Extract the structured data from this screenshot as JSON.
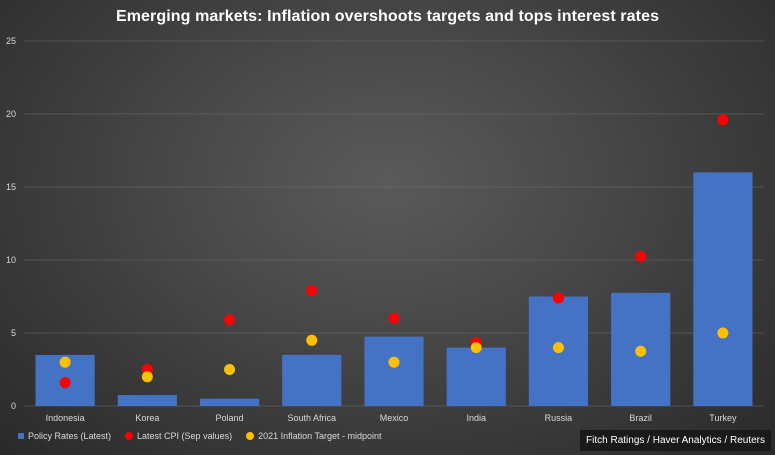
{
  "chart_data": {
    "type": "bar",
    "title": "Emerging markets: Inflation overshoots targets and tops interest rates",
    "categories": [
      "Indonesia",
      "Korea",
      "Poland",
      "South Africa",
      "Mexico",
      "India",
      "Russia",
      "Brazil",
      "Turkey"
    ],
    "series": [
      {
        "name": "Policy Rates (Latest)",
        "kind": "bar",
        "color": "#4472c4",
        "values": [
          3.5,
          0.75,
          0.5,
          3.5,
          4.75,
          4.0,
          7.5,
          7.75,
          16.0
        ]
      },
      {
        "name": "Latest CPI (Sep values)",
        "kind": "dot",
        "color": "#ff0000",
        "values": [
          1.6,
          2.5,
          5.9,
          7.9,
          6.0,
          4.35,
          7.4,
          10.25,
          19.6
        ]
      },
      {
        "name": "2021 Inflation Target - midpoint",
        "kind": "dot",
        "color": "#ffc000",
        "values": [
          3.0,
          2.0,
          2.5,
          4.5,
          3.0,
          4.0,
          4.0,
          3.75,
          5.0
        ]
      }
    ],
    "yticks": [
      0,
      5,
      10,
      15,
      20,
      25
    ],
    "ylim": [
      0,
      25
    ],
    "xlabel": "",
    "ylabel": "",
    "legend_position": "bottom-left",
    "grid": true
  },
  "source": "Fitch Ratings / Haver Analytics / Reuters"
}
